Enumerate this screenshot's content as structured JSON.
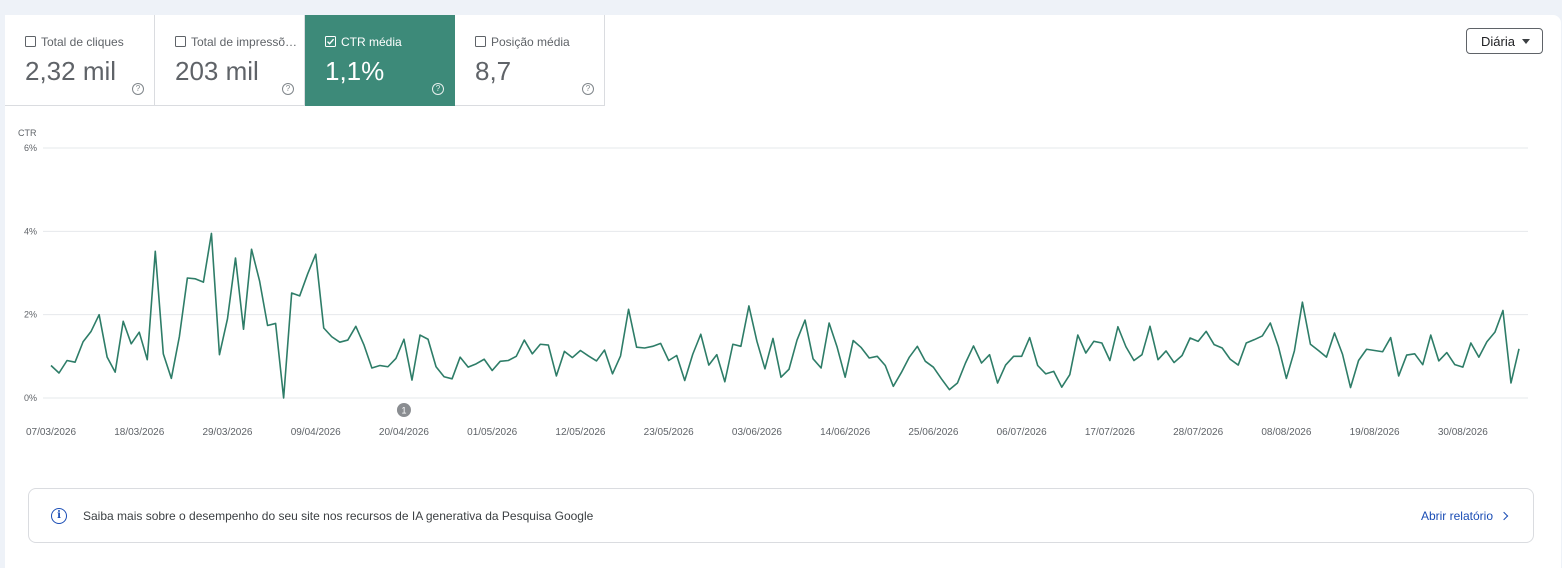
{
  "metrics": [
    {
      "label": "Total de cliques",
      "value": "2,32 mil",
      "checked": false
    },
    {
      "label": "Total de impressõ…",
      "value": "203 mil",
      "checked": false
    },
    {
      "label": "CTR média",
      "value": "1,1%",
      "checked": true
    },
    {
      "label": "Posição média",
      "value": "8,7",
      "checked": false
    }
  ],
  "help_glyph": "?",
  "granularity": {
    "selected": "Diária"
  },
  "colors": {
    "accent": "#3d8a79",
    "line": "#2e7d68",
    "link": "#1a4db5"
  },
  "chart_data": {
    "type": "line",
    "ylabel": "CTR",
    "yticks": [
      "0%",
      "2%",
      "4%",
      "6%"
    ],
    "ylim": [
      0,
      6
    ],
    "grid": true,
    "x_tick_labels": [
      "07/03/2026",
      "18/03/2026",
      "29/03/2026",
      "09/04/2026",
      "20/04/2026",
      "01/05/2026",
      "12/05/2026",
      "23/05/2026",
      "03/06/2026",
      "14/06/2026",
      "25/06/2026",
      "06/07/2026",
      "17/07/2026",
      "28/07/2026",
      "08/08/2026",
      "19/08/2026",
      "30/08/2026"
    ],
    "start_date": "07/03/2026",
    "annotation": {
      "date": "20/04/2026",
      "label": "1"
    },
    "series": [
      {
        "values": [
          0.78,
          0.6,
          0.9,
          0.86,
          1.35,
          1.6,
          2.0,
          0.98,
          0.62,
          1.84,
          1.3,
          1.58,
          0.92,
          3.52,
          1.06,
          0.47,
          1.47,
          2.88,
          2.86,
          2.78,
          3.95,
          1.04,
          1.9,
          3.36,
          1.65,
          3.57,
          2.81,
          1.74,
          1.79,
          0.0,
          2.52,
          2.45,
          2.98,
          3.45,
          1.68,
          1.47,
          1.34,
          1.39,
          1.72,
          1.28,
          0.72,
          0.78,
          0.75,
          0.95,
          1.41,
          0.43,
          1.51,
          1.41,
          0.75,
          0.51,
          0.46,
          0.98,
          0.74,
          0.82,
          0.93,
          0.66,
          0.88,
          0.9,
          1.0,
          1.39,
          1.06,
          1.29,
          1.27,
          0.53,
          1.12,
          0.97,
          1.14,
          1.01,
          0.89,
          1.15,
          0.58,
          1.01,
          2.13,
          1.22,
          1.2,
          1.24,
          1.31,
          0.9,
          1.02,
          0.42,
          1.05,
          1.53,
          0.79,
          1.04,
          0.39,
          1.29,
          1.24,
          2.21,
          1.36,
          0.7,
          1.43,
          0.5,
          0.69,
          1.39,
          1.87,
          0.94,
          0.72,
          1.8,
          1.22,
          0.5,
          1.38,
          1.21,
          0.96,
          1.0,
          0.78,
          0.28,
          0.61,
          0.98,
          1.24,
          0.88,
          0.74,
          0.46,
          0.2,
          0.36,
          0.84,
          1.25,
          0.84,
          1.04,
          0.36,
          0.79,
          1.0,
          1.0,
          1.45,
          0.78,
          0.58,
          0.64,
          0.26,
          0.56,
          1.51,
          1.08,
          1.36,
          1.32,
          0.9,
          1.71,
          1.23,
          0.9,
          1.04,
          1.72,
          0.92,
          1.13,
          0.85,
          1.02,
          1.44,
          1.36,
          1.6,
          1.28,
          1.2,
          0.93,
          0.79,
          1.32,
          1.4,
          1.49,
          1.8,
          1.24,
          0.47,
          1.13,
          2.3,
          1.29,
          1.14,
          0.98,
          1.56,
          1.05,
          0.25,
          0.9,
          1.17,
          1.14,
          1.11,
          1.45,
          0.53,
          1.03,
          1.06,
          0.8,
          1.51,
          0.89,
          1.09,
          0.8,
          0.74,
          1.32,
          0.98,
          1.35,
          1.58,
          2.1,
          0.36,
          1.18
        ]
      }
    ]
  },
  "banner": {
    "text": "Saiba mais sobre o desempenho do seu site nos recursos de IA generativa da Pesquisa Google",
    "link": "Abrir relatório",
    "icon": "info-icon"
  }
}
